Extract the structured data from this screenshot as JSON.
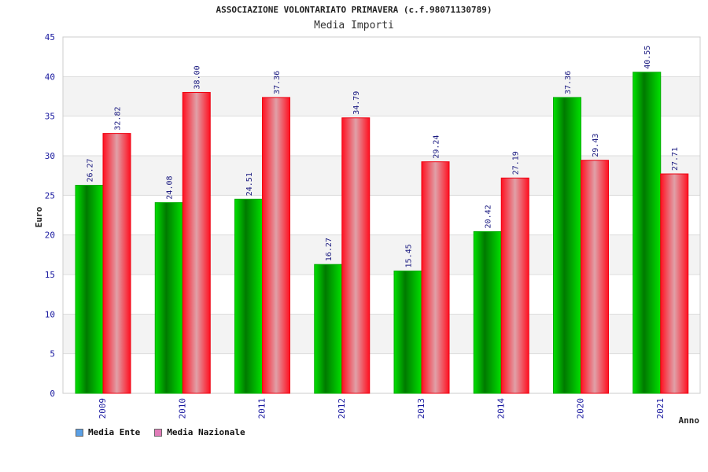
{
  "title": "ASSOCIAZIONE VOLONTARIATO PRIMAVERA (c.f.98071130789)",
  "subtitle": "Media Importi",
  "chart_data": {
    "type": "bar",
    "title": "ASSOCIAZIONE VOLONTARIATO PRIMAVERA (c.f.98071130789)",
    "subtitle": "Media Importi",
    "xlabel": "Anno",
    "ylabel": "Euro",
    "ylim": [
      0,
      45
    ],
    "yticks": [
      0,
      5,
      10,
      15,
      20,
      25,
      30,
      35,
      40,
      45
    ],
    "grid": true,
    "legend_position": "bottom-left",
    "categories": [
      "2009",
      "2010",
      "2011",
      "2012",
      "2013",
      "2014",
      "2020",
      "2021"
    ],
    "series": [
      {
        "name": "Media Ente",
        "values": [
          26.27,
          24.08,
          24.51,
          16.27,
          15.45,
          20.42,
          37.36,
          40.55
        ],
        "labels": [
          "26.27",
          "24.08",
          "24.51",
          "16.27",
          "15.45",
          "20.42",
          "37.36",
          "40.55"
        ],
        "color": "#00cc00",
        "legend_color": "#5aa0e6"
      },
      {
        "name": "Media Nazionale",
        "values": [
          32.82,
          38.0,
          37.36,
          34.79,
          29.24,
          27.19,
          29.43,
          27.71
        ],
        "labels": [
          "32.82",
          "38.00",
          "37.36",
          "34.79",
          "29.24",
          "27.19",
          "29.43",
          "27.71"
        ],
        "color": "#ee1122",
        "legend_color": "#e07cb8"
      }
    ]
  }
}
